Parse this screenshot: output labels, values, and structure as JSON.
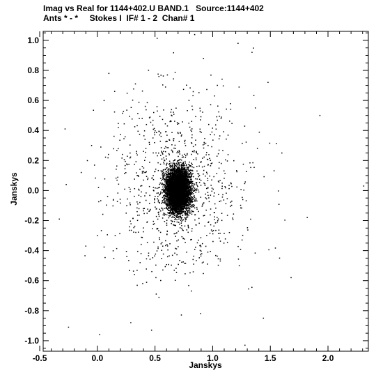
{
  "header": {
    "title_line1": "Imag vs Real for 1144+402.U BAND.1   Source:1144+402",
    "title_line2": "Ants * - *     Stokes I  IF# 1 - 2  Chan# 1"
  },
  "chart_data": {
    "type": "scatter",
    "title": "Imag vs Real for 1144+402.U BAND.1   Source:1144+402",
    "subtitle": "Ants * - *     Stokes I  IF# 1 - 2  Chan# 1",
    "xlabel": "Janskys",
    "ylabel": "Janskys",
    "xlim": [
      -0.47,
      2.35
    ],
    "ylim": [
      -1.07,
      1.06
    ],
    "x_ticks": [
      -0.5,
      0.0,
      0.5,
      1.0,
      1.5,
      2.0
    ],
    "x_tick_labels": [
      "-0.5",
      "0.0",
      "0.5",
      "1.0",
      "1.5",
      "2.0"
    ],
    "y_ticks": [
      -1.0,
      -0.8,
      -0.6,
      -0.4,
      -0.2,
      0.0,
      0.2,
      0.4,
      0.6,
      0.8,
      1.0
    ],
    "y_tick_labels": [
      "-1.0",
      "-0.8",
      "-0.6",
      "-0.4",
      "-0.2",
      "0.0",
      "0.2",
      "0.4",
      "0.6",
      "0.8",
      "1.0"
    ],
    "grid": false,
    "marker_color": "#000000",
    "dense_core": {
      "center": [
        0.7,
        0.0
      ],
      "sd": [
        0.05,
        0.07
      ],
      "point_count": 6000
    },
    "halo": {
      "center": [
        0.7,
        0.05
      ],
      "sd": [
        0.28,
        0.33
      ],
      "point_count": 1000
    },
    "points": [
      [
        -0.28,
        0.41
      ],
      [
        -0.33,
        -0.19
      ],
      [
        -0.25,
        -0.91
      ],
      [
        -0.27,
        0.04
      ],
      [
        0.02,
        -0.96
      ],
      [
        0.01,
        0.02
      ],
      [
        0.1,
        0.78
      ],
      [
        0.15,
        0.66
      ],
      [
        0.6,
        1.05
      ],
      [
        1.22,
        0.98
      ],
      [
        0.92,
        0.88
      ],
      [
        1.6,
        0.25
      ],
      [
        1.82,
        -0.18
      ],
      [
        2.31,
        0.03
      ],
      [
        1.93,
        0.5
      ],
      [
        1.58,
        -0.45
      ],
      [
        1.48,
        0.72
      ],
      [
        1.44,
        -0.85
      ],
      [
        1.28,
        -1.03
      ],
      [
        0.47,
        -0.93
      ],
      [
        0.29,
        -0.88
      ],
      [
        -0.1,
        -0.37
      ],
      [
        -0.14,
        0.12
      ],
      [
        0.0,
        -0.3
      ],
      [
        1.68,
        -0.58
      ],
      [
        1.37,
        0.55
      ],
      [
        0.33,
        0.71
      ],
      [
        -0.05,
        0.3
      ]
    ]
  }
}
